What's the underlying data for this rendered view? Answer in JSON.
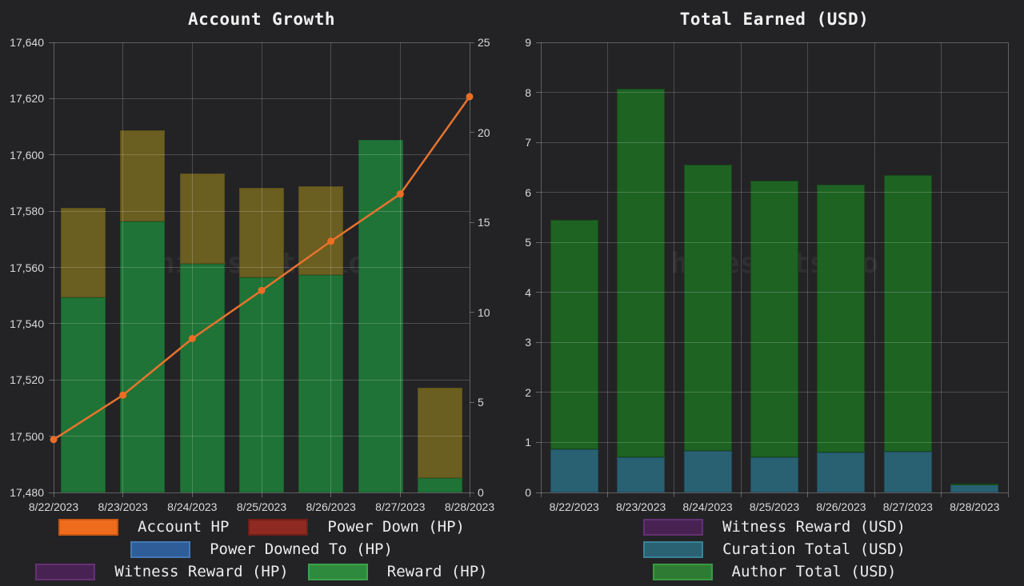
{
  "page": {
    "background": "#232326",
    "watermark": "hivestats.io"
  },
  "chart_data": [
    {
      "type": "bar",
      "stacked": true,
      "title": "Account Growth",
      "categories": [
        "8/22/2023",
        "8/23/2023",
        "8/24/2023",
        "8/25/2023",
        "8/26/2023",
        "8/27/2023",
        "8/28/2023"
      ],
      "left_axis": {
        "min": 17480,
        "max": 17640,
        "step": 20,
        "ticks": [
          "17,480",
          "17,500",
          "17,520",
          "17,540",
          "17,560",
          "17,580",
          "17,600",
          "17,620",
          "17,640"
        ]
      },
      "right_axis": {
        "min": 0,
        "max": 25,
        "step": 5,
        "ticks": [
          "0",
          "5",
          "10",
          "15",
          "20",
          "25"
        ]
      },
      "series": [
        {
          "name": "Reward (HP)",
          "axis": "right",
          "color": "#1f7337",
          "border": "#1a5f2c",
          "values": [
            10.85,
            15.05,
            12.7,
            11.95,
            12.1,
            19.6,
            0.8
          ]
        },
        {
          "name": "Power Down (HP)",
          "axis": "right",
          "color": "#6a5e20",
          "border": "#5a4f1b",
          "values": [
            4.95,
            5.05,
            5.0,
            4.95,
            4.9,
            0,
            5.0
          ]
        }
      ],
      "line_series": {
        "name": "Account HP",
        "axis": "left",
        "color": "#e8732d",
        "point_color": "#ec6d24",
        "values": [
          17498.8,
          17514.6,
          17534.7,
          17551.8,
          17569.3,
          17586.1,
          17620.7
        ]
      },
      "grid": "on",
      "legend_position": "bottom",
      "legend_rows": [
        [
          {
            "label": "Account HP",
            "color": "#f06c1d",
            "border": "#c95712"
          },
          {
            "label": "Power Down (HP)",
            "color": "#8e2a22",
            "border": "#6f1f19"
          }
        ],
        [
          {
            "label": "Power Downed To (HP)",
            "color": "#2e5d97",
            "border": "#4579b5"
          }
        ],
        [
          {
            "label": "Witness Reward (HP)",
            "color": "#482253",
            "border": "#643173"
          },
          {
            "label": "Reward (HP)",
            "color": "#2e8a3d",
            "border": "#3ba24c"
          }
        ]
      ]
    },
    {
      "type": "bar",
      "stacked": true,
      "title": "Total Earned (USD)",
      "categories": [
        "8/22/2023",
        "8/23/2023",
        "8/24/2023",
        "8/25/2023",
        "8/26/2023",
        "8/27/2023",
        "8/28/2023"
      ],
      "left_axis": {
        "min": 0,
        "max": 9,
        "step": 1,
        "ticks": [
          "0",
          "1",
          "2",
          "3",
          "4",
          "5",
          "6",
          "7",
          "8",
          "9"
        ]
      },
      "series": [
        {
          "name": "Witness Reward (USD)",
          "axis": "left",
          "color": "#482253",
          "border": "#643173",
          "values": [
            0,
            0,
            0,
            0,
            0,
            0,
            0
          ]
        },
        {
          "name": "Curation Total (USD)",
          "axis": "left",
          "color": "#296173",
          "border": "#204c59",
          "values": [
            0.86,
            0.71,
            0.83,
            0.7,
            0.8,
            0.82,
            0.17
          ]
        },
        {
          "name": "Author Total (USD)",
          "axis": "left",
          "color": "#1e6322",
          "border": "#154a19",
          "values": [
            4.59,
            7.37,
            5.72,
            5.54,
            5.36,
            5.52,
            0.01
          ]
        }
      ],
      "grid": "on",
      "legend_position": "bottom",
      "legend_rows": [
        [
          {
            "label": "Witness Reward (USD)",
            "color": "#482253",
            "border": "#643173"
          }
        ],
        [
          {
            "label": "Curation Total (USD)",
            "color": "#2a6274",
            "border": "#3a8096"
          }
        ],
        [
          {
            "label": "Author Total (USD)",
            "color": "#2e7c33",
            "border": "#3b9a43"
          }
        ]
      ]
    }
  ]
}
